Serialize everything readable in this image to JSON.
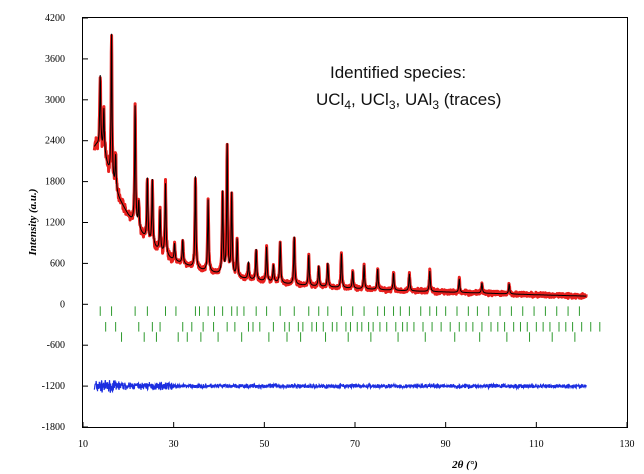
{
  "chart_data": {
    "type": "line",
    "xlabel": "2θ (°)",
    "ylabel": "Intensity (a.u.)",
    "xlim": [
      10,
      130
    ],
    "ylim": [
      -1800,
      4200
    ],
    "x_ticks": [
      10,
      30,
      50,
      70,
      90,
      110,
      130
    ],
    "y_ticks": [
      -1800,
      -1200,
      -600,
      0,
      600,
      1200,
      1800,
      2400,
      3000,
      3600,
      4200
    ],
    "annotation": {
      "line1": "Identified species:",
      "line2": {
        "a": "UCl",
        "a_sub": "4",
        "b": ", UCl",
        "b_sub": "3",
        "c": ", UAl",
        "c_sub": "3",
        "d": " (traces)"
      }
    },
    "colors": {
      "observed": "#e8201e",
      "calculated": "#000000",
      "difference": "#1c2ee0",
      "reflections": "#2e9a2e"
    },
    "background": {
      "x": [
        12.5,
        13,
        14,
        15,
        16,
        17,
        18,
        20,
        22,
        24,
        26,
        28,
        30,
        35,
        40,
        45,
        50,
        55,
        60,
        70,
        80,
        90,
        100,
        110,
        121
      ],
      "y": [
        2300,
        2330,
        2280,
        2120,
        1850,
        1680,
        1540,
        1300,
        1100,
        950,
        820,
        720,
        640,
        520,
        440,
        380,
        340,
        300,
        270,
        230,
        200,
        180,
        160,
        140,
        120
      ]
    },
    "peaks": [
      {
        "x": 13.8,
        "h": 1050
      },
      {
        "x": 14.6,
        "h": 650
      },
      {
        "x": 16.3,
        "h": 2150
      },
      {
        "x": 17.2,
        "h": 500
      },
      {
        "x": 21.5,
        "h": 1750
      },
      {
        "x": 22.3,
        "h": 400
      },
      {
        "x": 24.2,
        "h": 900
      },
      {
        "x": 25.3,
        "h": 950
      },
      {
        "x": 27.0,
        "h": 600
      },
      {
        "x": 28.2,
        "h": 1050
      },
      {
        "x": 30.2,
        "h": 250
      },
      {
        "x": 32.0,
        "h": 350
      },
      {
        "x": 34.8,
        "h": 1350
      },
      {
        "x": 37.6,
        "h": 1050
      },
      {
        "x": 40.8,
        "h": 1200
      },
      {
        "x": 41.8,
        "h": 1900
      },
      {
        "x": 42.8,
        "h": 1200
      },
      {
        "x": 44.0,
        "h": 550
      },
      {
        "x": 46.5,
        "h": 250
      },
      {
        "x": 48.2,
        "h": 450
      },
      {
        "x": 50.5,
        "h": 500
      },
      {
        "x": 52.0,
        "h": 250
      },
      {
        "x": 53.5,
        "h": 600
      },
      {
        "x": 56.6,
        "h": 700
      },
      {
        "x": 59.8,
        "h": 450
      },
      {
        "x": 62.0,
        "h": 300
      },
      {
        "x": 64.0,
        "h": 350
      },
      {
        "x": 67.0,
        "h": 500
      },
      {
        "x": 69.5,
        "h": 250
      },
      {
        "x": 72.0,
        "h": 350
      },
      {
        "x": 75.0,
        "h": 300
      },
      {
        "x": 78.5,
        "h": 250
      },
      {
        "x": 82.0,
        "h": 250
      },
      {
        "x": 86.5,
        "h": 300
      },
      {
        "x": 93.0,
        "h": 200
      },
      {
        "x": 98.0,
        "h": 150
      },
      {
        "x": 104.0,
        "h": 150
      }
    ],
    "reflection_rows": [
      {
        "y": -100,
        "x": [
          13.8,
          16.3,
          21.5,
          24.2,
          28.2,
          30.5,
          34.8,
          35.7,
          37.6,
          39.0,
          40.8,
          42.8,
          44.0,
          45.5,
          48.2,
          50.5,
          53.5,
          56.6,
          59.8,
          62.0,
          64.0,
          67.0,
          69.5,
          72.0,
          75.0,
          76.5,
          78.5,
          80.0,
          82.0,
          84.5,
          86.5,
          88.0,
          90.0,
          92.5,
          95.0,
          97.0,
          99.5,
          102.0,
          104.5,
          107.0,
          109.5,
          112.0,
          114.5,
          117.0,
          119.5
        ]
      },
      {
        "y": -330,
        "x": [
          15.0,
          17.2,
          22.3,
          25.3,
          27.0,
          32.0,
          34.0,
          36.5,
          38.8,
          41.8,
          43.5,
          46.5,
          47.5,
          49.0,
          52.0,
          54.5,
          55.5,
          57.5,
          58.5,
          60.5,
          61.5,
          63.0,
          65.0,
          66.0,
          68.0,
          69.0,
          70.5,
          71.5,
          73.0,
          74.0,
          75.5,
          77.0,
          79.0,
          80.5,
          81.5,
          83.0,
          85.0,
          87.0,
          89.0,
          91.0,
          93.0,
          94.5,
          96.0,
          98.0,
          100.0,
          101.5,
          103.0,
          105.0,
          106.5,
          108.0,
          110.0,
          111.5,
          113.0,
          115.0,
          116.5,
          118.0,
          120.0,
          122.0,
          124.0
        ]
      },
      {
        "y": -480,
        "x": [
          18.5,
          23.5,
          26.2,
          31.0,
          33.0,
          36.0,
          39.8,
          45.0,
          51.0,
          55.0,
          58.0,
          63.5,
          68.5,
          73.5,
          79.5,
          85.5,
          92.0,
          97.5,
          103.5,
          108.5,
          113.5,
          118.5
        ]
      }
    ],
    "difference_offset": -1200
  }
}
